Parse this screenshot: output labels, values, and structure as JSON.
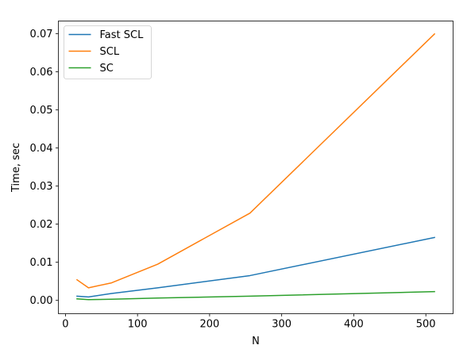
{
  "chart_data": {
    "type": "line",
    "title": "",
    "xlabel": "N",
    "ylabel": "Time, sec",
    "xlim": [
      -9.8,
      537.8
    ],
    "ylim": [
      -0.0035,
      0.0733
    ],
    "xticks": [
      0,
      100,
      200,
      300,
      400,
      500
    ],
    "xtick_labels": [
      "0",
      "100",
      "200",
      "300",
      "400",
      "500"
    ],
    "yticks": [
      0,
      0.01,
      0.02,
      0.03,
      0.04,
      0.05,
      0.06,
      0.07
    ],
    "ytick_labels": [
      "0.00",
      "0.01",
      "0.02",
      "0.03",
      "0.04",
      "0.05",
      "0.06",
      "0.07"
    ],
    "grid": false,
    "legend_position": "top-left",
    "x": [
      16,
      32,
      64,
      128,
      256,
      512
    ],
    "series": [
      {
        "name": "Fast SCL",
        "color": "#1f77b4",
        "values": [
          0.0011,
          0.0009,
          0.0018,
          0.0033,
          0.0065,
          0.0165
        ]
      },
      {
        "name": "SCL",
        "color": "#ff7f0e",
        "values": [
          0.0054,
          0.0033,
          0.0046,
          0.0095,
          0.0229,
          0.0699
        ]
      },
      {
        "name": "SC",
        "color": "#2ca02c",
        "values": [
          0.0004,
          0.0002,
          0.0003,
          0.0006,
          0.0011,
          0.0023
        ]
      }
    ]
  }
}
